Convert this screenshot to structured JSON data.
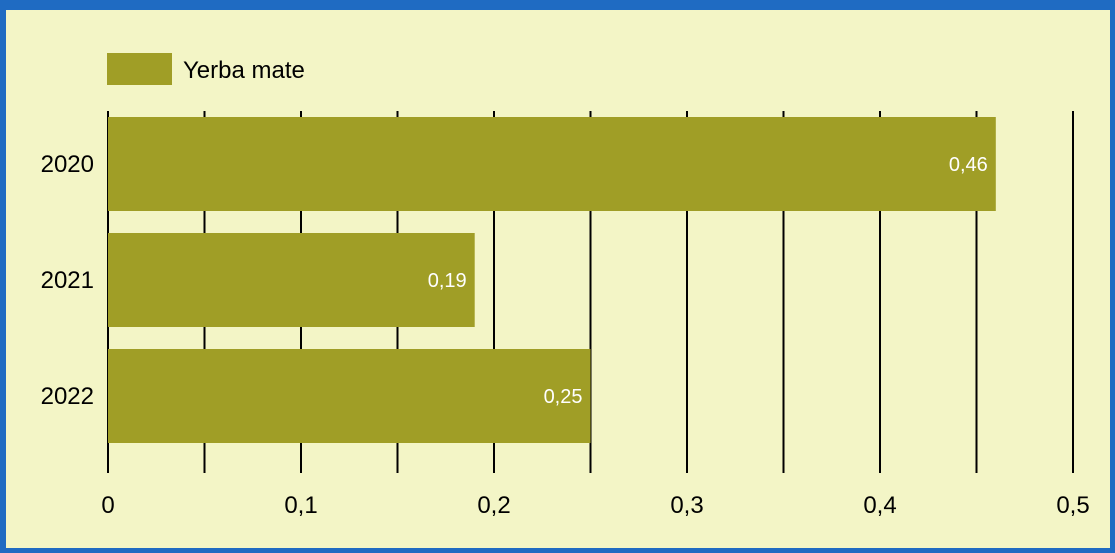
{
  "colors": {
    "frame_border": "#1f6bc2",
    "background": "#f3f5c6",
    "bar": "#a09e26",
    "grid": "#000000",
    "data_label": "#ffffff"
  },
  "chart_data": {
    "type": "bar",
    "orientation": "horizontal",
    "categories": [
      "2020",
      "2021",
      "2022"
    ],
    "series": [
      {
        "name": "Yerba mate",
        "values": [
          0.46,
          0.19,
          0.25
        ]
      }
    ],
    "data_labels": [
      "0,46",
      "0,19",
      "0,25"
    ],
    "x_ticks": [
      0,
      0.05,
      0.1,
      0.15,
      0.2,
      0.25,
      0.3,
      0.35,
      0.4,
      0.45,
      0.5
    ],
    "x_tick_labels": [
      "0",
      "",
      "0,1",
      "",
      "0,2",
      "",
      "0,3",
      "",
      "0,4",
      "",
      "0,5"
    ],
    "xlim": [
      0,
      0.5
    ],
    "grid": true,
    "legend_position": "top-left",
    "title": "",
    "xlabel": "",
    "ylabel": ""
  }
}
